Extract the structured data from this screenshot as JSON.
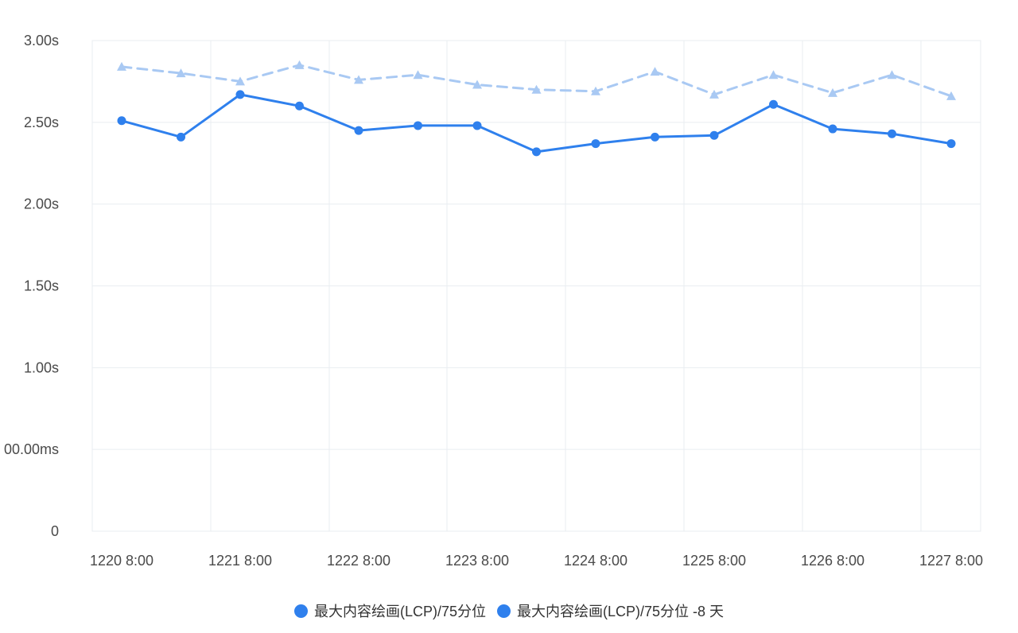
{
  "chart_data": {
    "type": "line",
    "x": [
      "1220 8:00",
      "",
      "1221 8:00",
      "",
      "1222 8:00",
      "",
      "1223 8:00",
      "",
      "1224 8:00",
      "",
      "1225 8:00",
      "",
      "1226 8:00",
      "",
      "1227 8:00"
    ],
    "x_tick_labels": [
      "1220 8:00",
      "1221 8:00",
      "1222 8:00",
      "1223 8:00",
      "1224 8:00",
      "1225 8:00",
      "1226 8:00",
      "1227 8:00"
    ],
    "y_tick_labels": [
      "0",
      "00.00ms",
      "1.00s",
      "1.50s",
      "2.00s",
      "2.50s",
      "3.00s"
    ],
    "ylim": [
      0,
      3.0
    ],
    "grid": true,
    "legend_position": "bottom",
    "series": [
      {
        "name": "最大内容绘画(LCP)/75分位",
        "values": [
          2.51,
          2.41,
          2.67,
          2.6,
          2.45,
          2.48,
          2.48,
          2.32,
          2.37,
          2.41,
          2.42,
          2.61,
          2.46,
          2.43,
          2.37
        ],
        "color": "#2f80ed",
        "style": "solid",
        "marker": "circle"
      },
      {
        "name": "最大内容绘画(LCP)/75分位 -8 天",
        "values": [
          2.84,
          2.8,
          2.75,
          2.85,
          2.76,
          2.79,
          2.73,
          2.7,
          2.69,
          2.81,
          2.67,
          2.79,
          2.68,
          2.79,
          2.66
        ],
        "color": "#a9c9f3",
        "style": "dashed",
        "marker": "triangle"
      }
    ]
  },
  "legend": {
    "items": [
      {
        "label": "最大内容绘画(LCP)/75分位",
        "color": "#2f80ed"
      },
      {
        "label": "最大内容绘画(LCP)/75分位 -8 天",
        "color": "#2f80ed"
      }
    ]
  }
}
